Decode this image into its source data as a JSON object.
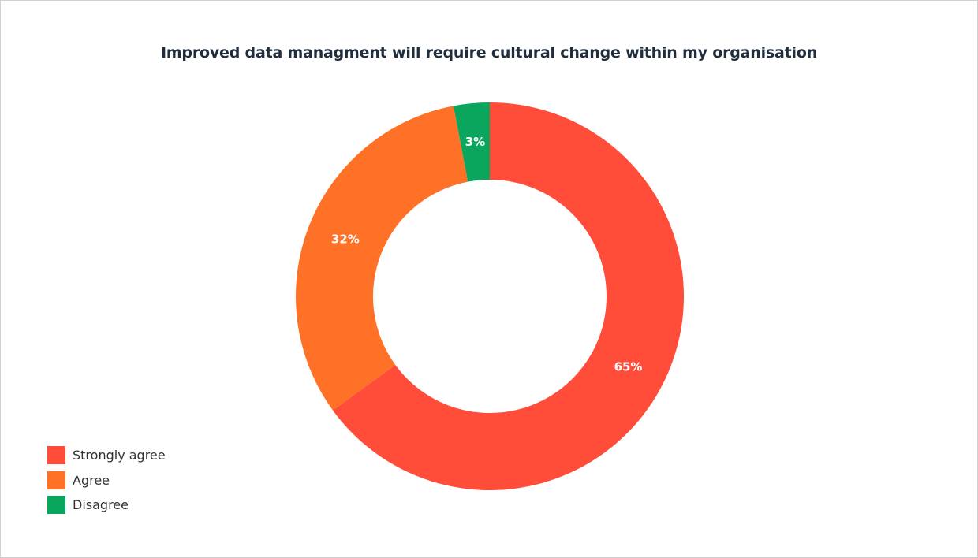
{
  "chart_data": {
    "type": "pie",
    "variant": "donut",
    "title": "Improved data managment will require cultural change within my organisation",
    "legend_position": "bottom-left",
    "slices": [
      {
        "label": "Strongly agree",
        "value": 65,
        "display": "65%",
        "color": "#ff4d3a"
      },
      {
        "label": "Agree",
        "value": 32,
        "display": "32%",
        "color": "#ff7127"
      },
      {
        "label": "Disagree",
        "value": 3,
        "display": "3%",
        "color": "#0aa65e"
      }
    ]
  }
}
